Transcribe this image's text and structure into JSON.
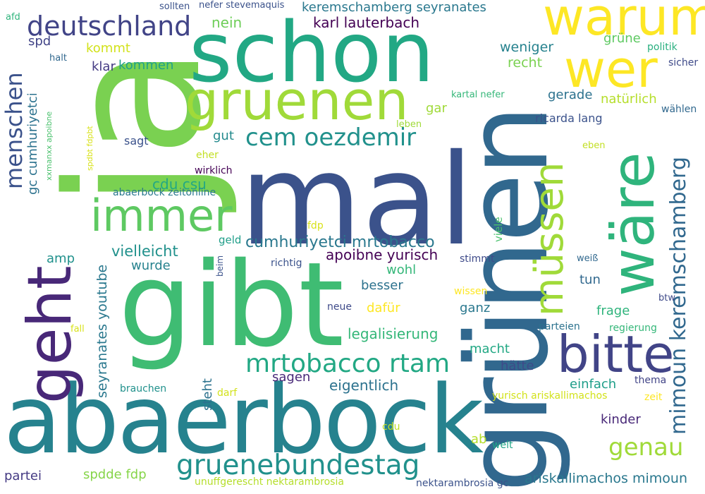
{
  "words": [
    {
      "text": "ja",
      "color": "#7ad151"
    },
    {
      "text": "mal",
      "color": "#3b528b"
    },
    {
      "text": "grünen",
      "color": "#31688e"
    },
    {
      "text": "gibt",
      "color": "#3fbc73"
    },
    {
      "text": "abaerbock",
      "color": "#26828e"
    },
    {
      "text": "schon",
      "color": "#22a884"
    },
    {
      "text": "warum",
      "color": "#fde725"
    },
    {
      "text": "wer",
      "color": "#fde725"
    },
    {
      "text": "wäre",
      "color": "#2fb47c"
    },
    {
      "text": "geht",
      "color": "#482878"
    },
    {
      "text": "gruenen",
      "color": "#a0da39"
    },
    {
      "text": "immer",
      "color": "#5ec962"
    },
    {
      "text": "bitte",
      "color": "#414487"
    },
    {
      "text": "müssen",
      "color": "#a0da39"
    },
    {
      "text": "deutschland",
      "color": "#414487"
    },
    {
      "text": "menschen",
      "color": "#3b528b"
    },
    {
      "text": "cem oezdemir",
      "color": "#21918c"
    },
    {
      "text": "mimoun keremschamberg",
      "color": "#31688e"
    },
    {
      "text": "mrtobacco rtam",
      "color": "#22a884"
    },
    {
      "text": "gruenebundestag",
      "color": "#21918c"
    },
    {
      "text": "genau",
      "color": "#a0da39"
    },
    {
      "text": "keremschamberg seyranates",
      "color": "#2a788e"
    },
    {
      "text": "karl lauterbach",
      "color": "#440154"
    },
    {
      "text": "cumhuriyetci mrtobacco",
      "color": "#2a788e"
    },
    {
      "text": "apoibne yurisch",
      "color": "#440154"
    },
    {
      "text": "seyranates youtube",
      "color": "#2a788e"
    },
    {
      "text": "gc cumhuriyetci",
      "color": "#2c728e"
    },
    {
      "text": "ariskallimachos mimoun",
      "color": "#2a788e"
    },
    {
      "text": "legalisierung",
      "color": "#35b779"
    },
    {
      "text": "vielleicht",
      "color": "#21918c"
    },
    {
      "text": "eigentlich",
      "color": "#2c728e"
    },
    {
      "text": "cdu csu",
      "color": "#22a884"
    },
    {
      "text": "nein",
      "color": "#6ece58"
    },
    {
      "text": "spd",
      "color": "#414487"
    },
    {
      "text": "kommt",
      "color": "#d2e21b"
    },
    {
      "text": "klar",
      "color": "#443a83"
    },
    {
      "text": "kommen",
      "color": "#1fa188"
    },
    {
      "text": "weniger",
      "color": "#26828e"
    },
    {
      "text": "recht",
      "color": "#7ad151"
    },
    {
      "text": "grüne",
      "color": "#5ec962"
    },
    {
      "text": "politik",
      "color": "#29af7f"
    },
    {
      "text": "sicher",
      "color": "#3e4a89"
    },
    {
      "text": "gerade",
      "color": "#2c728e"
    },
    {
      "text": "natürlich",
      "color": "#b5de2b"
    },
    {
      "text": "wählen",
      "color": "#31688e"
    },
    {
      "text": "gar",
      "color": "#a0da39"
    },
    {
      "text": "ricarda lang",
      "color": "#3b528b"
    },
    {
      "text": "gut",
      "color": "#238a8d"
    },
    {
      "text": "sagt",
      "color": "#3b528b"
    },
    {
      "text": "eher",
      "color": "#c2df23"
    },
    {
      "text": "eben",
      "color": "#c2df23"
    },
    {
      "text": "wirklich",
      "color": "#440154"
    },
    {
      "text": "abaerbock zeitonline",
      "color": "#2a788e"
    },
    {
      "text": "fdp",
      "color": "#d8e219"
    },
    {
      "text": "geld",
      "color": "#1f9e89"
    },
    {
      "text": "viele",
      "color": "#4ac16d"
    },
    {
      "text": "amp",
      "color": "#21918c"
    },
    {
      "text": "wurde",
      "color": "#26828e"
    },
    {
      "text": "richtig",
      "color": "#3b528b"
    },
    {
      "text": "stimmt",
      "color": "#3e4a89"
    },
    {
      "text": "weiß",
      "color": "#31688e"
    },
    {
      "text": "wohl",
      "color": "#35b779"
    },
    {
      "text": "besser",
      "color": "#2c728e"
    },
    {
      "text": "tun",
      "color": "#31688e"
    },
    {
      "text": "neue",
      "color": "#3e4a89"
    },
    {
      "text": "dafür",
      "color": "#fde725"
    },
    {
      "text": "ganz",
      "color": "#2a788e"
    },
    {
      "text": "wissen",
      "color": "#fde725"
    },
    {
      "text": "frage",
      "color": "#2fb47c"
    },
    {
      "text": "btw",
      "color": "#3e4a89"
    },
    {
      "text": "parteien",
      "color": "#2c728e"
    },
    {
      "text": "regierung",
      "color": "#35b779"
    },
    {
      "text": "macht",
      "color": "#22a884"
    },
    {
      "text": "hätte",
      "color": "#3e4a89"
    },
    {
      "text": "sagen",
      "color": "#482878"
    },
    {
      "text": "einfach",
      "color": "#1f9e89"
    },
    {
      "text": "thema",
      "color": "#414487"
    },
    {
      "text": "yurisch ariskallimachos",
      "color": "#d2e21b"
    },
    {
      "text": "zeit",
      "color": "#fde725"
    },
    {
      "text": "brauchen",
      "color": "#21918c"
    },
    {
      "text": "steht",
      "color": "#2c728e"
    },
    {
      "text": "darf",
      "color": "#d2e21b"
    },
    {
      "text": "kinder",
      "color": "#482878"
    },
    {
      "text": "cdu",
      "color": "#c2df23"
    },
    {
      "text": "ab",
      "color": "#b5de2b"
    },
    {
      "text": "welt",
      "color": "#20a486"
    },
    {
      "text": "partei",
      "color": "#443a83"
    },
    {
      "text": "spdde fdp",
      "color": "#86d549"
    },
    {
      "text": "unuffgerescht nektarambrosia",
      "color": "#b5de2b"
    },
    {
      "text": "nektarambrosia gc",
      "color": "#3b528b"
    },
    {
      "text": "fall",
      "color": "#d8e219"
    },
    {
      "text": "afd",
      "color": "#2fb47c"
    },
    {
      "text": "sollten",
      "color": "#3b528b"
    },
    {
      "text": "nefer stevemaquis",
      "color": "#3b528b"
    },
    {
      "text": "halt",
      "color": "#31688e"
    },
    {
      "text": "xxmanxx apoibne",
      "color": "#4ac16d"
    },
    {
      "text": "spdbt fdpbt",
      "color": "#d8e219"
    },
    {
      "text": "kartal nefer",
      "color": "#35b779"
    },
    {
      "text": "leben",
      "color": "#a0da39"
    },
    {
      "text": "beim",
      "color": "#3b528b"
    }
  ]
}
